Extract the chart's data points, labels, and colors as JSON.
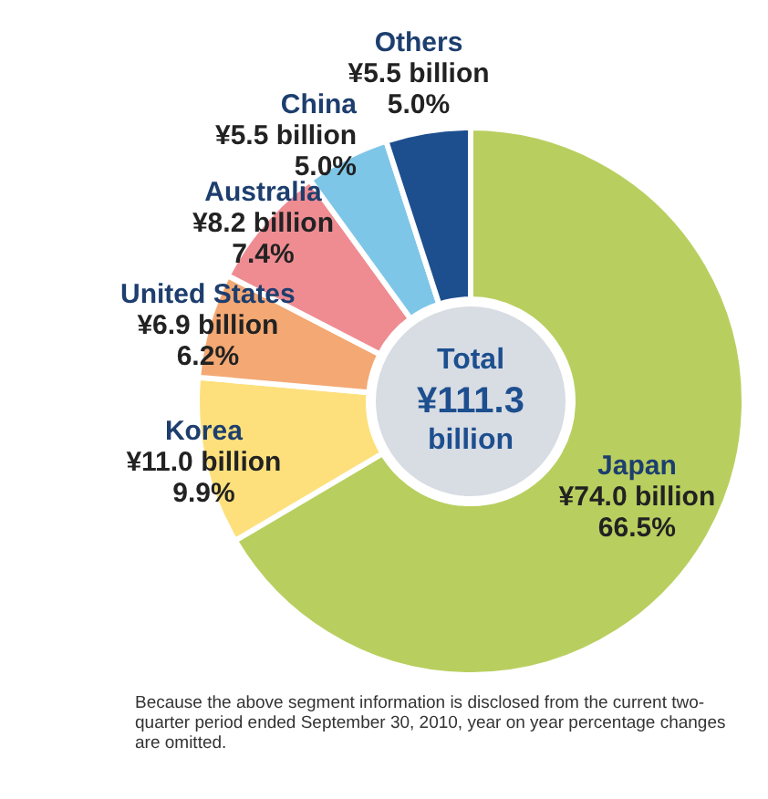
{
  "chart_data": {
    "type": "donut",
    "categories": [
      "Japan",
      "Korea",
      "United States",
      "Australia",
      "China",
      "Others"
    ],
    "values": [
      66.5,
      9.9,
      6.2,
      7.4,
      5.0,
      5.0
    ],
    "value_labels": [
      "¥74.0 billion 66.5%",
      "¥11.0 billion 9.9%",
      "¥6.9 billion 6.2%",
      "¥8.2 billion 7.4%",
      "¥5.5 billion 5.0%",
      "¥5.5 billion 5.0%"
    ],
    "colors": [
      "#b8cf5f",
      "#fde07c",
      "#f4a873",
      "#ee8c92",
      "#7ec6e8",
      "#1d4f8f"
    ],
    "legend": false,
    "annotations": [
      "Total ¥111.3 billion",
      "Because the above segment information is disclosed from the current two-quarter period ended September 30, 2010, year on year percentage changes are omitted."
    ]
  }
}
